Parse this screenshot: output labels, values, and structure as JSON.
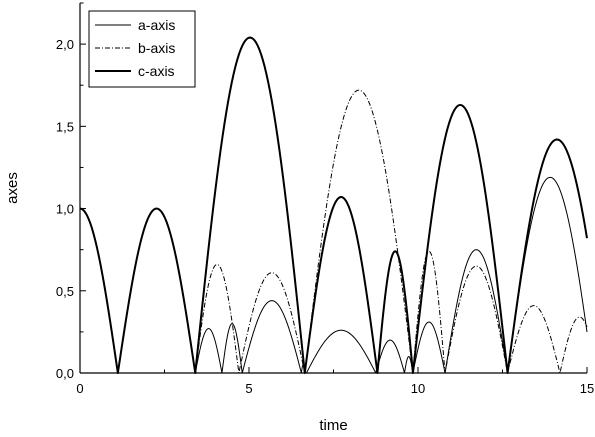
{
  "chart_data": {
    "type": "line",
    "xlabel": "time",
    "ylabel": "axes",
    "xlim": [
      0,
      15
    ],
    "ylim": [
      0,
      2.25
    ],
    "x_ticks": [
      {
        "value": 0,
        "label": "0"
      },
      {
        "value": 5,
        "label": "5"
      },
      {
        "value": 10,
        "label": "10"
      },
      {
        "value": 15,
        "label": "15"
      }
    ],
    "y_ticks": [
      {
        "value": 0,
        "label": "0,0"
      },
      {
        "value": 0.5,
        "label": "0,5"
      },
      {
        "value": 1.0,
        "label": "1,0"
      },
      {
        "value": 1.5,
        "label": "1,5"
      },
      {
        "value": 2.0,
        "label": "2,0"
      }
    ],
    "legend_position": "top-left",
    "grid": false,
    "series": [
      {
        "name": "a-axis",
        "style": "thin-solid",
        "color": "#000000",
        "arcs": [
          [
            0,
            1.12,
            1.0,
            0
          ],
          [
            1.12,
            3.41,
            0,
            1.0
          ],
          [
            3.41,
            4.2,
            0.27,
            0
          ],
          [
            4.2,
            4.8,
            0.3,
            0
          ],
          [
            4.8,
            6.55,
            0.44,
            0
          ],
          [
            6.55,
            6.65,
            0.05,
            0
          ],
          [
            6.7,
            8.75,
            0.26,
            0
          ],
          [
            8.75,
            9.6,
            0.2,
            0
          ],
          [
            9.6,
            9.85,
            0.1,
            0
          ],
          [
            9.85,
            10.8,
            0.31,
            0
          ],
          [
            10.8,
            12.65,
            0.75,
            0
          ],
          [
            12.65,
            15.0,
            1.19,
            0.25
          ]
        ]
      },
      {
        "name": "b-axis",
        "style": "dash-dot",
        "color": "#000000",
        "arcs": [
          [
            0,
            1.12,
            1.0,
            0
          ],
          [
            1.12,
            3.41,
            0,
            1.0
          ],
          [
            3.41,
            4.7,
            0.66,
            0
          ],
          [
            4.7,
            6.65,
            0.61,
            0
          ],
          [
            6.65,
            9.85,
            1.72,
            0
          ],
          [
            9.85,
            10.8,
            0.74,
            0
          ],
          [
            10.8,
            12.65,
            0.65,
            0
          ],
          [
            12.65,
            14.2,
            0.41,
            0
          ],
          [
            14.2,
            15.0,
            0.34,
            0.28
          ]
        ]
      },
      {
        "name": "c-axis",
        "style": "thick-solid",
        "color": "#000000",
        "arcs": [
          [
            0,
            1.12,
            1.0,
            0
          ],
          [
            1.12,
            3.41,
            0,
            1.0
          ],
          [
            3.41,
            6.65,
            2.04,
            0
          ],
          [
            6.65,
            8.8,
            1.07,
            0
          ],
          [
            8.8,
            9.85,
            0.74,
            0
          ],
          [
            9.85,
            12.65,
            1.63,
            0
          ],
          [
            12.65,
            15.0,
            1.42,
            0.82
          ]
        ]
      }
    ]
  }
}
